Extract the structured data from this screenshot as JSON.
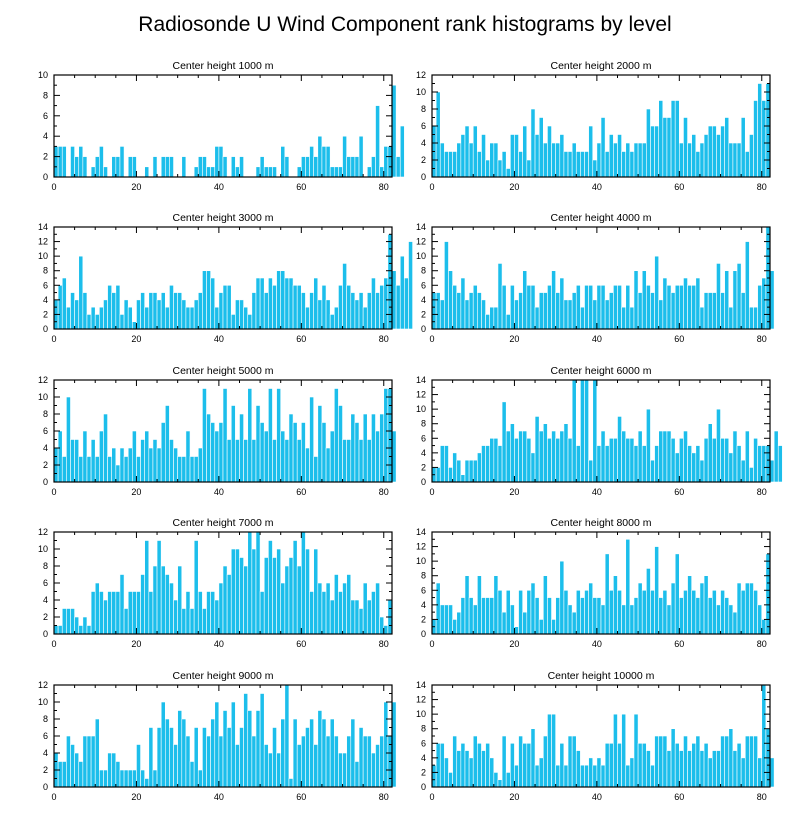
{
  "title": "Radiosonde U Wind Component rank histograms by level",
  "chart_data": [
    {
      "type": "bar",
      "title": "Center height 1000 m",
      "xlim": [
        0,
        82
      ],
      "ylim": [
        0,
        10
      ],
      "xticks": [
        0,
        20,
        40,
        60,
        80
      ],
      "yticks": [
        0,
        2,
        4,
        6,
        8,
        10
      ],
      "values": [
        3,
        3,
        3,
        0,
        3,
        2,
        3,
        2,
        0,
        1,
        2,
        3,
        1,
        0,
        2,
        2,
        3,
        0,
        2,
        2,
        0,
        0,
        1,
        0,
        2,
        0,
        2,
        2,
        2,
        0,
        0,
        2,
        0,
        0,
        1,
        2,
        2,
        1,
        1,
        3,
        3,
        2,
        0,
        2,
        1,
        2,
        0,
        0,
        0,
        1,
        2,
        1,
        1,
        1,
        0,
        3,
        2,
        0,
        0,
        1,
        2,
        2,
        3,
        2,
        4,
        3,
        3,
        1,
        1,
        1,
        4,
        2,
        2,
        2,
        4,
        0,
        1,
        2,
        7,
        1,
        3,
        3,
        9,
        2,
        5
      ]
    },
    {
      "type": "bar",
      "title": "Center height 2000 m",
      "xlim": [
        0,
        82
      ],
      "ylim": [
        0,
        12
      ],
      "xticks": [
        0,
        20,
        40,
        60,
        80
      ],
      "yticks": [
        0,
        2,
        4,
        6,
        8,
        10,
        12
      ],
      "values": [
        6,
        10,
        4,
        3,
        3,
        3,
        4,
        5,
        6,
        4,
        6,
        3,
        5,
        2,
        4,
        4,
        2,
        3,
        1,
        5,
        5,
        3,
        6,
        2,
        8,
        5,
        7,
        4,
        6,
        4,
        4,
        5,
        3,
        3,
        4,
        3,
        3,
        3,
        6,
        2,
        4,
        7,
        3,
        5,
        4,
        5,
        3,
        4,
        3,
        4,
        4,
        4,
        8,
        6,
        6,
        9,
        7,
        7,
        9,
        9,
        4,
        7,
        4,
        5,
        3,
        4,
        5,
        6,
        6,
        5,
        6,
        7,
        4,
        4,
        4,
        7,
        3,
        5,
        9,
        11,
        9,
        11
      ]
    },
    {
      "type": "bar",
      "title": "Center height 3000 m",
      "xlim": [
        0,
        82
      ],
      "ylim": [
        0,
        14
      ],
      "xticks": [
        0,
        20,
        40,
        60,
        80
      ],
      "yticks": [
        0,
        2,
        4,
        6,
        8,
        10,
        12,
        14
      ],
      "values": [
        4,
        6,
        7,
        3,
        5,
        4,
        10,
        5,
        2,
        3,
        2,
        3,
        4,
        6,
        5,
        6,
        2,
        4,
        3,
        1,
        4,
        5,
        3,
        5,
        5,
        4,
        5,
        3,
        6,
        5,
        5,
        4,
        3,
        3,
        4,
        5,
        8,
        8,
        7,
        3,
        5,
        6,
        6,
        2,
        4,
        4,
        3,
        2,
        5,
        7,
        7,
        5,
        7,
        6,
        8,
        8,
        7,
        7,
        6,
        6,
        5,
        3,
        5,
        7,
        4,
        6,
        4,
        2,
        3,
        6,
        9,
        6,
        5,
        4,
        5,
        3,
        5,
        7,
        5,
        6,
        7,
        13,
        8,
        6,
        10,
        7,
        12
      ]
    },
    {
      "type": "bar",
      "title": "Center height 4000 m",
      "xlim": [
        0,
        82
      ],
      "ylim": [
        0,
        14
      ],
      "xticks": [
        0,
        20,
        40,
        60,
        80
      ],
      "yticks": [
        0,
        2,
        4,
        6,
        8,
        10,
        12,
        14
      ],
      "values": [
        5,
        5,
        4,
        12,
        8,
        6,
        5,
        7,
        4,
        5,
        6,
        5,
        4,
        2,
        3,
        3,
        9,
        6,
        2,
        6,
        4,
        5,
        8,
        6,
        6,
        3,
        5,
        5,
        6,
        8,
        5,
        7,
        4,
        4,
        5,
        6,
        3,
        6,
        6,
        4,
        6,
        6,
        4,
        5,
        6,
        6,
        3,
        6,
        3,
        8,
        5,
        8,
        6,
        5,
        10,
        4,
        7,
        6,
        5,
        6,
        6,
        7,
        6,
        6,
        7,
        3,
        5,
        5,
        5,
        9,
        5,
        8,
        3,
        8,
        9,
        5,
        12,
        3,
        3,
        6,
        7,
        14,
        8
      ]
    },
    {
      "type": "bar",
      "title": "Center height 5000 m",
      "xlim": [
        0,
        82
      ],
      "ylim": [
        0,
        12
      ],
      "xticks": [
        0,
        20,
        40,
        60,
        80
      ],
      "yticks": [
        0,
        2,
        4,
        6,
        8,
        10,
        12
      ],
      "values": [
        4,
        6,
        3,
        10,
        5,
        5,
        3,
        6,
        3,
        5,
        3,
        6,
        8,
        3,
        4,
        2,
        4,
        3,
        4,
        6,
        3,
        5,
        6,
        4,
        5,
        4,
        7,
        9,
        5,
        4,
        3,
        3,
        6,
        3,
        3,
        4,
        11,
        8,
        7,
        6,
        7,
        11,
        5,
        9,
        5,
        8,
        5,
        11,
        5,
        9,
        7,
        6,
        11,
        5,
        11,
        6,
        5,
        8,
        7,
        5,
        7,
        4,
        10,
        3,
        9,
        7,
        4,
        6,
        11,
        9,
        5,
        5,
        8,
        7,
        5,
        8,
        5,
        8,
        6,
        8,
        11,
        11,
        6
      ]
    },
    {
      "type": "bar",
      "title": "Center height 6000 m",
      "xlim": [
        0,
        82
      ],
      "ylim": [
        0,
        14
      ],
      "xticks": [
        0,
        20,
        40,
        60,
        80
      ],
      "yticks": [
        0,
        2,
        4,
        6,
        8,
        10,
        12,
        14
      ],
      "values": [
        2,
        2,
        5,
        5,
        2,
        4,
        3,
        1,
        3,
        3,
        3,
        4,
        5,
        5,
        6,
        6,
        5,
        11,
        7,
        8,
        6,
        7,
        7,
        6,
        4,
        9,
        7,
        8,
        6,
        7,
        6,
        7,
        8,
        6,
        14,
        5,
        14,
        14,
        3,
        14,
        5,
        7,
        5,
        6,
        6,
        9,
        7,
        6,
        6,
        5,
        7,
        5,
        10,
        3,
        5,
        7,
        7,
        7,
        6,
        4,
        6,
        7,
        5,
        4,
        5,
        3,
        6,
        8,
        6,
        10,
        6,
        6,
        4,
        7,
        5,
        3,
        7,
        2,
        6,
        5,
        5,
        5,
        3,
        7,
        5
      ]
    },
    {
      "type": "bar",
      "title": "Center height 7000 m",
      "xlim": [
        0,
        82
      ],
      "ylim": [
        0,
        12
      ],
      "xticks": [
        0,
        20,
        40,
        60,
        80
      ],
      "yticks": [
        0,
        2,
        4,
        6,
        8,
        10,
        12
      ],
      "values": [
        1,
        1,
        3,
        3,
        3,
        2,
        1,
        2,
        1,
        5,
        6,
        5,
        4,
        5,
        5,
        5,
        7,
        3,
        5,
        5,
        5,
        7,
        11,
        5,
        8,
        11,
        8,
        7,
        6,
        4,
        8,
        3,
        5,
        3,
        11,
        5,
        3,
        5,
        5,
        4,
        6,
        8,
        7,
        10,
        10,
        9,
        8,
        12,
        10,
        12,
        5,
        9,
        11,
        9,
        10,
        6,
        8,
        9,
        11,
        8,
        12,
        10,
        5,
        10,
        6,
        5,
        6,
        4,
        7,
        5,
        6,
        7,
        4,
        4,
        3,
        6,
        4,
        5,
        6,
        2,
        1,
        4
      ]
    },
    {
      "type": "bar",
      "title": "Center height 8000 m",
      "xlim": [
        0,
        82
      ],
      "ylim": [
        0,
        14
      ],
      "xticks": [
        0,
        20,
        40,
        60,
        80
      ],
      "yticks": [
        0,
        2,
        4,
        6,
        8,
        10,
        12,
        14
      ],
      "values": [
        2,
        7,
        4,
        4,
        4,
        2,
        3,
        5,
        8,
        5,
        4,
        8,
        5,
        5,
        5,
        8,
        6,
        3,
        6,
        4,
        1,
        6,
        3,
        6,
        7,
        5,
        2,
        8,
        5,
        2,
        5,
        10,
        6,
        4,
        3,
        6,
        5,
        6,
        7,
        5,
        5,
        4,
        11,
        6,
        8,
        6,
        4,
        13,
        4,
        5,
        7,
        6,
        9,
        6,
        12,
        5,
        6,
        4,
        7,
        11,
        5,
        6,
        8,
        6,
        5,
        7,
        8,
        5,
        6,
        4,
        6,
        5,
        4,
        3,
        7,
        6,
        7,
        7,
        6,
        4,
        2,
        11
      ]
    },
    {
      "type": "bar",
      "title": "Center height 9000 m",
      "xlim": [
        0,
        82
      ],
      "ylim": [
        0,
        12
      ],
      "xticks": [
        0,
        20,
        40,
        60,
        80
      ],
      "yticks": [
        0,
        2,
        4,
        6,
        8,
        10,
        12
      ],
      "values": [
        4,
        3,
        3,
        6,
        5,
        4,
        3,
        6,
        6,
        6,
        8,
        2,
        2,
        4,
        4,
        3,
        2,
        2,
        2,
        2,
        5,
        2,
        1,
        7,
        2,
        7,
        10,
        8,
        7,
        5,
        9,
        8,
        6,
        3,
        7,
        2,
        7,
        6,
        8,
        10,
        6,
        9,
        7,
        10,
        5,
        7,
        11,
        9,
        6,
        9,
        11,
        5,
        4,
        7,
        4,
        8,
        12,
        1,
        8,
        5,
        6,
        7,
        8,
        5,
        9,
        8,
        6,
        8,
        6,
        4,
        4,
        6,
        8,
        3,
        7,
        6,
        6,
        4,
        5,
        6,
        10,
        6,
        10
      ]
    },
    {
      "type": "bar",
      "title": "Center height 10000 m",
      "xlim": [
        0,
        82
      ],
      "ylim": [
        0,
        14
      ],
      "xticks": [
        0,
        20,
        40,
        60,
        80
      ],
      "yticks": [
        0,
        2,
        4,
        6,
        8,
        10,
        12,
        14
      ],
      "values": [
        3,
        6,
        6,
        4,
        2,
        7,
        5,
        6,
        5,
        4,
        7,
        6,
        5,
        6,
        4,
        2,
        1,
        7,
        2,
        6,
        3,
        7,
        6,
        6,
        8,
        3,
        4,
        7,
        10,
        10,
        3,
        6,
        3,
        7,
        7,
        5,
        3,
        3,
        4,
        3,
        4,
        3,
        6,
        6,
        10,
        6,
        10,
        3,
        4,
        10,
        6,
        6,
        5,
        3,
        7,
        7,
        7,
        5,
        8,
        6,
        5,
        7,
        5,
        6,
        7,
        5,
        6,
        4,
        5,
        5,
        7,
        7,
        8,
        5,
        6,
        4,
        7,
        7,
        7,
        4,
        14,
        8,
        4
      ]
    }
  ]
}
